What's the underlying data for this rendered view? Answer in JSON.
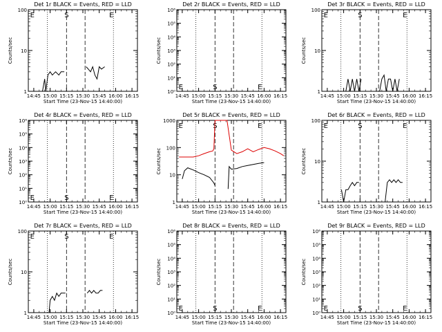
{
  "chart_data": [
    {
      "type": "line",
      "title": "Det 1r BLACK = Events, RED = LLD",
      "xlabel": "Start Time (23-Nov-15 14:40:00)",
      "ylabel": "Counts/sec",
      "log_y": true,
      "ylim": [
        1,
        100
      ],
      "y_tick_labels": [
        "1",
        "10",
        "100"
      ],
      "x_tick_labels": [
        "14:45",
        "15:00",
        "15:15",
        "15:30",
        "15:45",
        "16:00",
        "16:15"
      ],
      "markers": [
        {
          "label": "E",
          "side": "top"
        },
        {
          "label": "S",
          "side": "top"
        },
        {
          "label": "E",
          "side": "top"
        }
      ],
      "series": [
        {
          "color": "#000000",
          "x": [
            "14:53",
            "14:55",
            "14:56",
            "14:58",
            "15:00",
            "15:02",
            "15:05",
            "15:08",
            "15:10",
            "15:12",
            "15:13"
          ],
          "y": [
            1,
            2,
            1,
            2.5,
            3,
            2.5,
            3,
            2.5,
            3,
            3,
            3
          ]
        },
        {
          "color": "#000000",
          "x": [
            "15:33",
            "15:35",
            "15:37",
            "15:39",
            "15:41",
            "15:43",
            "15:45",
            "15:47",
            "15:50"
          ],
          "y": [
            4,
            3.5,
            3,
            4,
            2.5,
            2,
            4,
            3.5,
            4
          ]
        }
      ]
    },
    {
      "type": "line",
      "title": "Det 2r BLACK = Events, RED = LLD",
      "xlabel": "Start Time (23-Nov-15 14:40:00)",
      "ylabel": "Counts/sec",
      "log_y": true,
      "ylim": [
        1,
        1000000.0
      ],
      "y_tick_labels": [
        "10⁰",
        "10¹",
        "10²",
        "10³",
        "10⁴",
        "10⁵",
        "10⁶"
      ],
      "x_tick_labels": [
        "14:45",
        "15:00",
        "15:15",
        "15:30",
        "15:45",
        "16:00",
        "16:15"
      ],
      "markers": [
        {
          "label": "E",
          "side": "bottom"
        },
        {
          "label": "S",
          "side": "bottom"
        },
        {
          "label": "E",
          "side": "bottom"
        }
      ],
      "series": []
    },
    {
      "type": "line",
      "title": "Det 3r BLACK = Events, RED = LLD",
      "xlabel": "Start Time (23-Nov-15 14:40:00)",
      "ylabel": "Counts/sec",
      "log_y": true,
      "ylim": [
        1,
        100
      ],
      "y_tick_labels": [
        "1",
        "10",
        "100"
      ],
      "x_tick_labels": [
        "14:45",
        "15:00",
        "15:15",
        "15:30",
        "15:45",
        "16:00",
        "16:15"
      ],
      "markers": [
        {
          "label": "E",
          "side": "top"
        },
        {
          "label": "S",
          "side": "top"
        },
        {
          "label": "E",
          "side": "top"
        }
      ],
      "series": [
        {
          "color": "#000000",
          "x": [
            "15:02",
            "15:04",
            "15:06",
            "15:08",
            "15:10",
            "15:12",
            "15:14",
            "15:16"
          ],
          "y": [
            1,
            2,
            1,
            2,
            1,
            2,
            1,
            2
          ]
        },
        {
          "color": "#000000",
          "x": [
            "15:33",
            "15:35",
            "15:37",
            "15:39",
            "15:41",
            "15:43",
            "15:45",
            "15:47",
            "15:49",
            "15:51"
          ],
          "y": [
            1,
            2,
            2.5,
            1,
            2,
            2,
            1,
            2,
            1,
            2
          ]
        }
      ]
    },
    {
      "type": "line",
      "title": "Det 4r BLACK = Events, RED = LLD",
      "xlabel": "Start Time (23-Nov-15 14:40:00)",
      "ylabel": "Counts/sec",
      "log_y": true,
      "ylim": [
        1,
        1000000.0
      ],
      "y_tick_labels": [
        "10⁰",
        "10¹",
        "10²",
        "10³",
        "10⁴",
        "10⁵",
        "10⁶"
      ],
      "x_tick_labels": [
        "14:45",
        "15:00",
        "15:15",
        "15:30",
        "15:45",
        "16:00",
        "16:15"
      ],
      "markers": [
        {
          "label": "E",
          "side": "bottom"
        },
        {
          "label": "S",
          "side": "bottom"
        },
        {
          "label": "E",
          "side": "bottom"
        }
      ],
      "series": []
    },
    {
      "type": "line",
      "title": "Det 5r BLACK = Events, RED = LLD",
      "xlabel": "Start Time (23-Nov-15 14:40:00)",
      "ylabel": "Counts/sec",
      "log_y": true,
      "ylim": [
        1,
        1000
      ],
      "y_tick_labels": [
        "1",
        "10",
        "100",
        "1000"
      ],
      "x_tick_labels": [
        "14:45",
        "15:00",
        "15:15",
        "15:30",
        "15:45",
        "16:00",
        "16:15"
      ],
      "markers": [
        {
          "label": "E",
          "side": "top"
        },
        {
          "label": "S",
          "side": "top"
        },
        {
          "label": "E",
          "side": "top"
        }
      ],
      "series": [
        {
          "color": "#dd0000",
          "x": [
            "14:42",
            "14:45",
            "14:50",
            "14:55",
            "15:00",
            "15:05",
            "15:10",
            "15:13",
            "15:14",
            "15:15",
            "15:20",
            "15:26",
            "15:30",
            "15:35",
            "15:40",
            "15:45",
            "15:50",
            "15:55",
            "16:00",
            "16:05",
            "16:10",
            "16:15",
            "16:18"
          ],
          "y": [
            45,
            45,
            45,
            45,
            50,
            60,
            70,
            75,
            90,
            1000,
            1000,
            1000,
            80,
            60,
            70,
            90,
            70,
            85,
            100,
            90,
            75,
            60,
            50
          ]
        },
        {
          "color": "#000000",
          "x": [
            "14:45",
            "14:47",
            "14:50",
            "14:55",
            "15:00",
            "15:05",
            "15:10",
            "15:14",
            "15:15"
          ],
          "y": [
            7,
            14,
            18,
            15,
            12,
            10,
            8,
            5,
            4
          ]
        },
        {
          "color": "#000000",
          "x": [
            "15:27",
            "15:28",
            "15:30",
            "15:35",
            "15:40",
            "15:45",
            "15:50",
            "15:55",
            "16:00"
          ],
          "y": [
            3,
            20,
            16,
            17,
            20,
            22,
            24,
            26,
            28
          ]
        }
      ]
    },
    {
      "type": "line",
      "title": "Det 6r BLACK = Events, RED = LLD",
      "xlabel": "Start Time (23-Nov-15 14:40:00)",
      "ylabel": "Counts/sec",
      "log_y": true,
      "ylim": [
        1,
        100
      ],
      "y_tick_labels": [
        "1",
        "10",
        "100"
      ],
      "x_tick_labels": [
        "14:45",
        "15:00",
        "15:15",
        "15:30",
        "15:45",
        "16:00",
        "16:15"
      ],
      "markers": [
        {
          "label": "E",
          "side": "top"
        },
        {
          "label": "S",
          "side": "top"
        },
        {
          "label": "E",
          "side": "top"
        }
      ],
      "series": [
        {
          "color": "#000000",
          "x": [
            "14:58",
            "15:00",
            "15:02",
            "15:04",
            "15:06",
            "15:08",
            "15:10",
            "15:12",
            "15:14"
          ],
          "y": [
            2,
            1,
            2,
            2,
            2.5,
            3,
            2.5,
            3,
            3
          ]
        },
        {
          "color": "#000000",
          "x": [
            "15:38",
            "15:40",
            "15:42",
            "15:44",
            "15:46",
            "15:48",
            "15:50",
            "15:52",
            "15:54"
          ],
          "y": [
            1,
            3,
            3.5,
            3,
            3.5,
            3,
            3.5,
            3,
            3
          ]
        }
      ]
    },
    {
      "type": "line",
      "title": "Det 7r BLACK = Events, RED = LLD",
      "xlabel": "Start Time (23-Nov-15 14:40:00)",
      "ylabel": "Counts/sec",
      "log_y": true,
      "ylim": [
        1,
        100
      ],
      "y_tick_labels": [
        "1",
        "10",
        "100"
      ],
      "x_tick_labels": [
        "14:45",
        "15:00",
        "15:15",
        "15:30",
        "15:45",
        "16:00",
        "16:15"
      ],
      "markers": [
        {
          "label": "E",
          "side": "top"
        },
        {
          "label": "S",
          "side": "top"
        },
        {
          "label": "E",
          "side": "top"
        }
      ],
      "series": [
        {
          "color": "#000000",
          "x": [
            "14:59",
            "15:00",
            "15:02",
            "15:04",
            "15:06",
            "15:08",
            "15:10",
            "15:12",
            "15:14"
          ],
          "y": [
            1,
            2,
            2.5,
            2,
            3,
            2.5,
            3,
            3,
            3
          ]
        },
        {
          "color": "#000000",
          "x": [
            "15:34",
            "15:36",
            "15:38",
            "15:40",
            "15:42",
            "15:44",
            "15:46",
            "15:48"
          ],
          "y": [
            3,
            3.5,
            3,
            3.5,
            3,
            3,
            3.5,
            3.5
          ]
        }
      ]
    },
    {
      "type": "line",
      "title": "Det 8r BLACK = Events, RED = LLD",
      "xlabel": "Start Time (23-Nov-15 14:40:00)",
      "ylabel": "Counts/sec",
      "log_y": true,
      "ylim": [
        1,
        1000000.0
      ],
      "y_tick_labels": [
        "10⁰",
        "10¹",
        "10²",
        "10³",
        "10⁴",
        "10⁵",
        "10⁶"
      ],
      "x_tick_labels": [
        "14:45",
        "15:00",
        "15:15",
        "15:30",
        "15:45",
        "16:00",
        "16:15"
      ],
      "markers": [
        {
          "label": "E",
          "side": "bottom"
        },
        {
          "label": "S",
          "side": "bottom"
        },
        {
          "label": "E",
          "side": "bottom"
        }
      ],
      "series": []
    },
    {
      "type": "line",
      "title": "Det 9r BLACK = Events, RED = LLD",
      "xlabel": "Start Time (23-Nov-15 14:40:00)",
      "ylabel": "Counts/sec",
      "log_y": true,
      "ylim": [
        1,
        1000000.0
      ],
      "y_tick_labels": [
        "10⁰",
        "10¹",
        "10²",
        "10³",
        "10⁴",
        "10⁵",
        "10⁶"
      ],
      "x_tick_labels": [
        "14:45",
        "15:00",
        "15:15",
        "15:30",
        "15:45",
        "16:00",
        "16:15"
      ],
      "markers": [
        {
          "label": "E",
          "side": "bottom"
        },
        {
          "label": "S",
          "side": "bottom"
        },
        {
          "label": "E",
          "side": "bottom"
        }
      ],
      "series": []
    }
  ]
}
